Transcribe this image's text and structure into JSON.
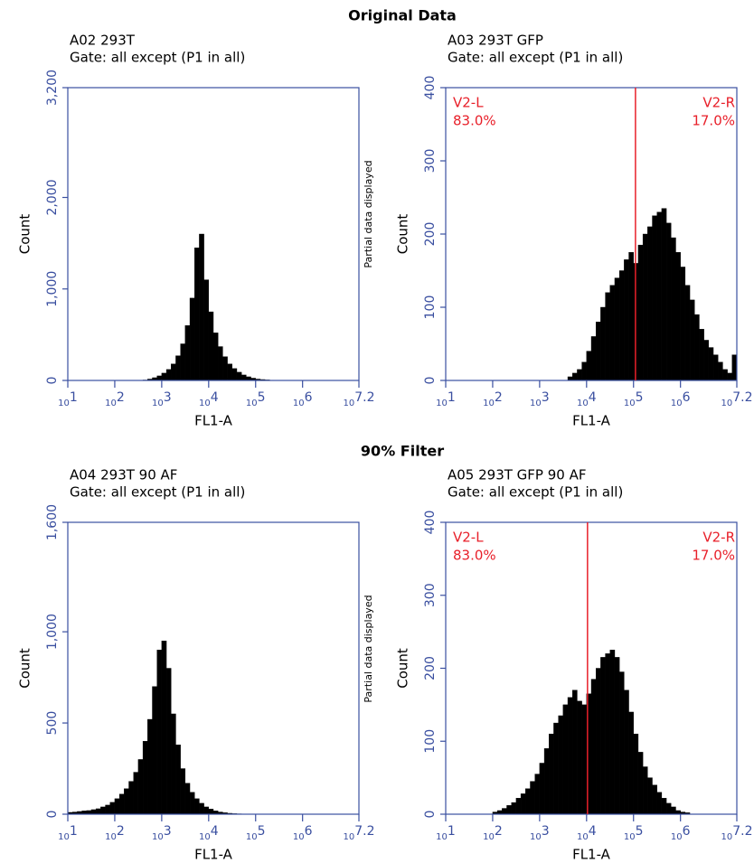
{
  "sections": [
    "Original Data",
    "90% Filter"
  ],
  "chart_data": [
    {
      "type": "histogram",
      "title": "A02 293T",
      "subtitle": "Gate: all except (P1 in all)",
      "xlabel": "FL1-A",
      "ylabel": "Count",
      "log_x": true,
      "color": "#000000",
      "bins": [
        10,
        12.59,
        15.85,
        19.95,
        25.12,
        31.62,
        39.81,
        50.12,
        63.1,
        79.43,
        100,
        125.9,
        158.5,
        199.5,
        251.2,
        316.2,
        398.1,
        501.2,
        631,
        794.3,
        1000,
        1259,
        1585,
        1995,
        2512,
        3162,
        3981,
        5012,
        6310,
        7943,
        10000,
        12590,
        15850,
        19950,
        25120,
        31620,
        39810,
        50120,
        63100,
        79430,
        100000,
        125900,
        158500,
        199500,
        251200,
        316200,
        398100,
        501200,
        631000,
        794300,
        1000000,
        1259000,
        1585000,
        1995000,
        2512000,
        3162000,
        3981000,
        5012000,
        6310000,
        7943000,
        10000000,
        12590000,
        15850000
      ],
      "values": [
        0,
        0,
        0,
        0,
        0,
        0,
        0,
        0,
        0,
        0,
        0,
        0,
        0,
        0,
        0,
        0,
        5,
        15,
        30,
        50,
        80,
        120,
        180,
        270,
        400,
        600,
        900,
        1450,
        1600,
        1100,
        750,
        520,
        370,
        260,
        180,
        130,
        90,
        60,
        40,
        25,
        15,
        10,
        6,
        3,
        0,
        0,
        0,
        0,
        0,
        0,
        0,
        0,
        0,
        0,
        0,
        0,
        0,
        0,
        0,
        0,
        0,
        0
      ],
      "xlim": [
        10,
        15850000
      ],
      "xticks": [
        {
          "value": 10,
          "label": "10^1"
        },
        {
          "value": 100,
          "label": "10^2"
        },
        {
          "value": 1000,
          "label": "10^3"
        },
        {
          "value": 10000,
          "label": "10^4"
        },
        {
          "value": 100000,
          "label": "10^5"
        },
        {
          "value": 1000000,
          "label": "10^6"
        },
        {
          "value": 15850000,
          "label": "10^7.2"
        }
      ],
      "ylim": [
        0,
        3200
      ],
      "yticks": [
        0,
        {
          "value": 1000,
          "label": "1,000"
        },
        {
          "value": 2000,
          "label": "2,000"
        },
        {
          "value": 3200,
          "label": "3,200"
        }
      ]
    },
    {
      "type": "histogram",
      "title": "A03 293T GFP",
      "subtitle": "Gate: all except (P1 in all)",
      "xlabel": "FL1-A",
      "ylabel": "Count",
      "note": "Partial data displayed",
      "log_x": true,
      "color": "#000000",
      "gate_color": "#e8202a",
      "bins": [
        10,
        12.59,
        15.85,
        19.95,
        25.12,
        31.62,
        39.81,
        50.12,
        63.1,
        79.43,
        100,
        125.9,
        158.5,
        199.5,
        251.2,
        316.2,
        398.1,
        501.2,
        631,
        794.3,
        1000,
        1259,
        1585,
        1995,
        2512,
        3162,
        3981,
        5012,
        6310,
        7943,
        10000,
        12590,
        15850,
        19950,
        25120,
        31620,
        39810,
        50120,
        63100,
        79430,
        100000,
        125900,
        158500,
        199500,
        251200,
        316200,
        398100,
        501200,
        631000,
        794300,
        1000000,
        1259000,
        1585000,
        1995000,
        2512000,
        3162000,
        3981000,
        5012000,
        6310000,
        7943000,
        10000000,
        12590000,
        15850000
      ],
      "values": [
        0,
        0,
        0,
        0,
        0,
        0,
        0,
        0,
        0,
        0,
        0,
        0,
        0,
        0,
        0,
        0,
        0,
        0,
        0,
        0,
        0,
        0,
        0,
        0,
        0,
        0,
        5,
        10,
        15,
        25,
        40,
        60,
        80,
        100,
        120,
        130,
        140,
        150,
        165,
        175,
        160,
        185,
        200,
        210,
        225,
        230,
        235,
        215,
        195,
        175,
        155,
        130,
        110,
        90,
        70,
        55,
        45,
        35,
        25,
        15,
        10,
        35
      ],
      "gate": {
        "value": 110000,
        "left_name": "V2-L",
        "left_percent": {
          "value": 83,
          "label": "83.0%"
        },
        "right_name": "V2-R",
        "right_percent": {
          "value": 17,
          "label": "17.0%"
        }
      },
      "xlim": [
        10,
        15850000
      ],
      "xticks": [
        {
          "value": 10,
          "label": "10^1"
        },
        {
          "value": 100,
          "label": "10^2"
        },
        {
          "value": 1000,
          "label": "10^3"
        },
        {
          "value": 10000,
          "label": "10^4"
        },
        {
          "value": 100000,
          "label": "10^5"
        },
        {
          "value": 1000000,
          "label": "10^6"
        },
        {
          "value": 15850000,
          "label": "10^7.2"
        }
      ],
      "ylim": [
        0,
        400
      ],
      "yticks": [
        0,
        100,
        200,
        300,
        400
      ]
    },
    {
      "type": "histogram",
      "title": "A04 293T 90 AF",
      "subtitle": "Gate: all except (P1 in all)",
      "xlabel": "FL1-A",
      "ylabel": "Count",
      "log_x": true,
      "color": "#000000",
      "bins": [
        10,
        12.59,
        15.85,
        19.95,
        25.12,
        31.62,
        39.81,
        50.12,
        63.1,
        79.43,
        100,
        125.9,
        158.5,
        199.5,
        251.2,
        316.2,
        398.1,
        501.2,
        631,
        794.3,
        1000,
        1259,
        1585,
        1995,
        2512,
        3162,
        3981,
        5012,
        6310,
        7943,
        10000,
        12590,
        15850,
        19950,
        25120,
        31620,
        39810,
        50120,
        63100,
        79430,
        100000,
        125900,
        158500,
        199500,
        251200,
        316200,
        398100,
        501200,
        631000,
        794300,
        1000000,
        1259000,
        1585000,
        1995000,
        2512000,
        3162000,
        3981000,
        5012000,
        6310000,
        7943000,
        10000000,
        12590000,
        15850000
      ],
      "values": [
        10,
        12,
        15,
        18,
        20,
        25,
        30,
        40,
        50,
        65,
        85,
        110,
        140,
        180,
        230,
        300,
        400,
        520,
        700,
        900,
        950,
        800,
        550,
        380,
        250,
        170,
        120,
        85,
        60,
        40,
        28,
        18,
        12,
        8,
        5,
        3,
        2,
        0,
        0,
        0,
        0,
        0,
        0,
        0,
        0,
        0,
        0,
        0,
        0,
        0,
        0,
        0,
        0,
        0,
        0,
        0,
        0,
        0,
        0,
        0,
        0,
        0
      ],
      "xlim": [
        10,
        15850000
      ],
      "xticks": [
        {
          "value": 10,
          "label": "10^1"
        },
        {
          "value": 100,
          "label": "10^2"
        },
        {
          "value": 1000,
          "label": "10^3"
        },
        {
          "value": 10000,
          "label": "10^4"
        },
        {
          "value": 100000,
          "label": "10^5"
        },
        {
          "value": 1000000,
          "label": "10^6"
        },
        {
          "value": 15850000,
          "label": "10^7.2"
        }
      ],
      "ylim": [
        0,
        1600
      ],
      "yticks": [
        0,
        500,
        {
          "value": 1000,
          "label": "1,000"
        },
        {
          "value": 1600,
          "label": "1,600"
        }
      ]
    },
    {
      "type": "histogram",
      "title": "A05 293T GFP 90 AF",
      "subtitle": "Gate: all except (P1 in all)",
      "xlabel": "FL1-A",
      "ylabel": "Count",
      "note": "Partial data displayed",
      "log_x": true,
      "color": "#000000",
      "gate_color": "#e8202a",
      "bins": [
        10,
        12.59,
        15.85,
        19.95,
        25.12,
        31.62,
        39.81,
        50.12,
        63.1,
        79.43,
        100,
        125.9,
        158.5,
        199.5,
        251.2,
        316.2,
        398.1,
        501.2,
        631,
        794.3,
        1000,
        1259,
        1585,
        1995,
        2512,
        3162,
        3981,
        5012,
        6310,
        7943,
        10000,
        12590,
        15850,
        19950,
        25120,
        31620,
        39810,
        50120,
        63100,
        79430,
        100000,
        125900,
        158500,
        199500,
        251200,
        316200,
        398100,
        501200,
        631000,
        794300,
        1000000,
        1259000,
        1585000,
        1995000,
        2512000,
        3162000,
        3981000,
        5012000,
        6310000,
        7943000,
        10000000,
        12590000,
        15850000
      ],
      "values": [
        0,
        0,
        0,
        0,
        0,
        0,
        0,
        0,
        0,
        0,
        3,
        5,
        8,
        12,
        16,
        22,
        28,
        35,
        45,
        55,
        70,
        90,
        110,
        125,
        135,
        150,
        160,
        170,
        155,
        150,
        165,
        185,
        200,
        215,
        220,
        225,
        215,
        195,
        170,
        140,
        110,
        85,
        65,
        50,
        40,
        30,
        22,
        15,
        10,
        5,
        3,
        2,
        0,
        0,
        0,
        0,
        0,
        0,
        0,
        0,
        0,
        0
      ],
      "gate": {
        "value": 10470,
        "left_name": "V2-L",
        "left_percent": {
          "value": 83,
          "label": "83.0%"
        },
        "right_name": "V2-R",
        "right_percent": {
          "value": 17,
          "label": "17.0%"
        }
      },
      "xlim": [
        10,
        15850000
      ],
      "xticks": [
        {
          "value": 10,
          "label": "10^1"
        },
        {
          "value": 100,
          "label": "10^2"
        },
        {
          "value": 1000,
          "label": "10^3"
        },
        {
          "value": 10000,
          "label": "10^4"
        },
        {
          "value": 100000,
          "label": "10^5"
        },
        {
          "value": 1000000,
          "label": "10^6"
        },
        {
          "value": 15850000,
          "label": "10^7.2"
        }
      ],
      "ylim": [
        0,
        400
      ],
      "yticks": [
        0,
        100,
        200,
        300,
        400
      ]
    }
  ]
}
